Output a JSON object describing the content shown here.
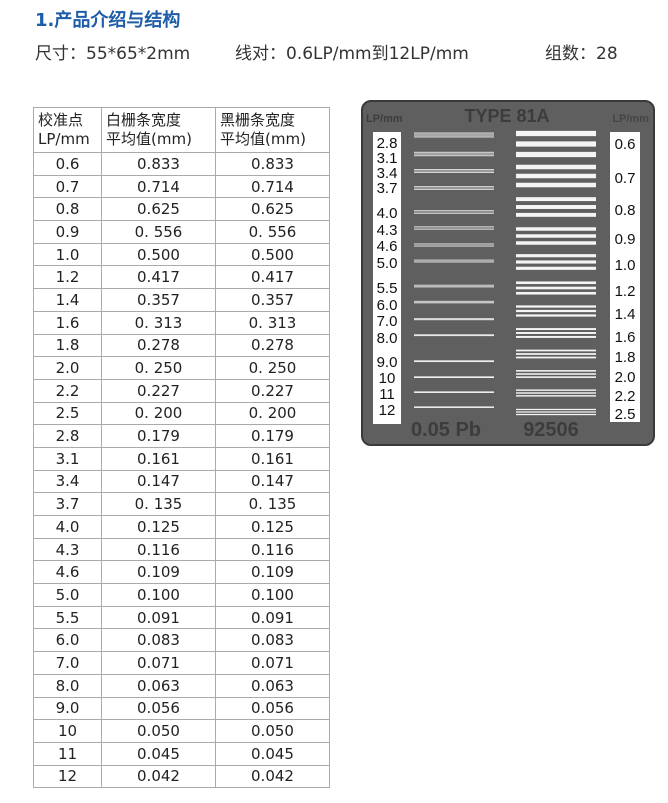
{
  "title": "1.产品介绍与结构",
  "specs": {
    "size": "尺寸：55*65*2mm",
    "line_pairs": "线对：0.6LP/mm到12LP/mm",
    "groups": "组数：28"
  },
  "table": {
    "headers": [
      [
        "校准点",
        "LP/mm"
      ],
      [
        "白栅条宽度",
        "平均值(mm)"
      ],
      [
        "黑栅条宽度",
        "平均值(mm)"
      ]
    ],
    "rows": [
      [
        "0.6",
        "0.833",
        "0.833"
      ],
      [
        "0.7",
        "0.714",
        "0.714"
      ],
      [
        "0.8",
        "0.625",
        "0.625"
      ],
      [
        "0.9",
        "0. 556",
        "0. 556"
      ],
      [
        "1.0",
        "0.500",
        "0.500"
      ],
      [
        "1.2",
        "0.417",
        "0.417"
      ],
      [
        "1.4",
        "0.357",
        "0.357"
      ],
      [
        "1.6",
        "0. 313",
        "0. 313"
      ],
      [
        "1.8",
        "0.278",
        "0.278"
      ],
      [
        "2.0",
        "0. 250",
        "0. 250"
      ],
      [
        "2.2",
        "0.227",
        "0.227"
      ],
      [
        "2.5",
        "0. 200",
        "0. 200"
      ],
      [
        "2.8",
        "0.179",
        "0.179"
      ],
      [
        "3.1",
        "0.161",
        "0.161"
      ],
      [
        "3.4",
        "0.147",
        "0.147"
      ],
      [
        "3.7",
        "0. 135",
        "0. 135"
      ],
      [
        "4.0",
        "0.125",
        "0.125"
      ],
      [
        "4.3",
        "0.116",
        "0.116"
      ],
      [
        "4.6",
        "0.109",
        "0.109"
      ],
      [
        "5.0",
        "0.100",
        "0.100"
      ],
      [
        "5.5",
        "0.091",
        "0.091"
      ],
      [
        "6.0",
        "0.083",
        "0.083"
      ],
      [
        "7.0",
        "0.071",
        "0.071"
      ],
      [
        "8.0",
        "0.063",
        "0.063"
      ],
      [
        "9.0",
        "0.056",
        "0.056"
      ],
      [
        "10",
        "0.050",
        "0.050"
      ],
      [
        "11",
        "0.045",
        "0.045"
      ],
      [
        "12",
        "0.042",
        "0.042"
      ]
    ]
  },
  "plate": {
    "type_label": "TYPE 81A",
    "unit_left": "LP/mm",
    "unit_right": "LP/mm",
    "left_labels": [
      "2.8",
      "3.1",
      "3.4",
      "3.7",
      "4.0",
      "4.3",
      "4.6",
      "5.0",
      "5.5",
      "6.0",
      "7.0",
      "8.0",
      "9.0",
      "10",
      "11",
      "12"
    ],
    "right_labels": [
      "0.6",
      "0.7",
      "0.8",
      "0.9",
      "1.0",
      "1.2",
      "1.4",
      "1.6",
      "1.8",
      "2.0",
      "2.2",
      "2.5"
    ],
    "thickness": "0.05 Pb",
    "serial": "92506",
    "colors": {
      "body": "#5f5f5f",
      "bars": "#f4f4f4",
      "title": "#1e5ca8"
    }
  }
}
